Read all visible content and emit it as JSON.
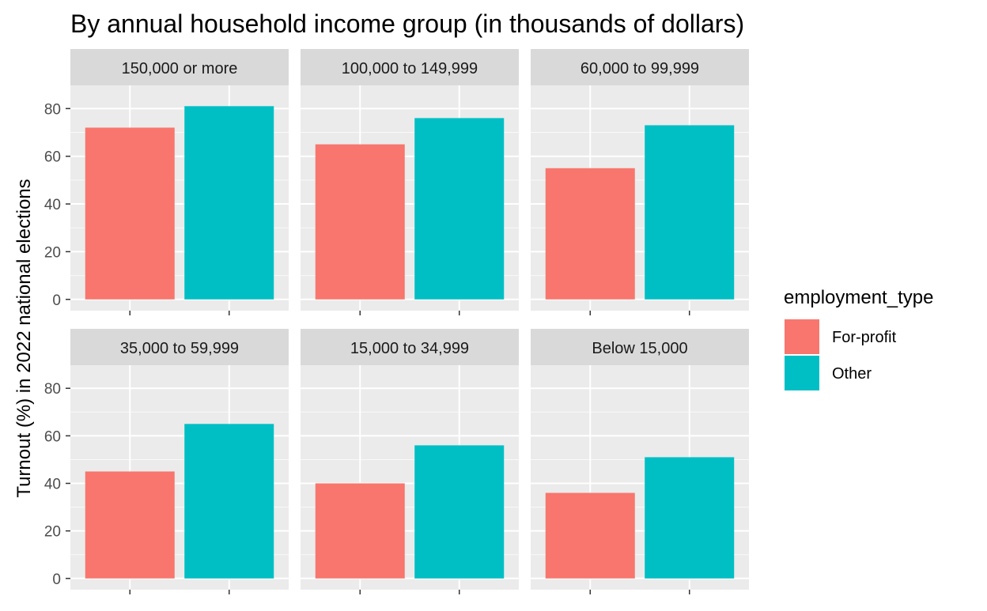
{
  "chart_data": {
    "type": "bar",
    "title": "By annual household income group (in thousands of dollars)",
    "ylabel": "Turnout (%) in 2022 national elections",
    "xlabel": "",
    "ylim": [
      0,
      85
    ],
    "yticks": [
      0,
      20,
      40,
      60,
      80
    ],
    "categories": [
      "For-profit",
      "Other"
    ],
    "legend": {
      "title": "employment_type",
      "position": "right",
      "entries": [
        {
          "label": "For-profit",
          "color": "#F8766D"
        },
        {
          "label": "Other",
          "color": "#00BFC4"
        }
      ]
    },
    "panels": [
      {
        "label": "150,000 or more",
        "values": [
          72,
          81
        ]
      },
      {
        "label": "100,000 to 149,999",
        "values": [
          65,
          76
        ]
      },
      {
        "label": "60,000 to 99,999",
        "values": [
          55,
          73
        ]
      },
      {
        "label": "35,000 to 59,999",
        "values": [
          45,
          65
        ]
      },
      {
        "label": "15,000 to 34,999",
        "values": [
          40,
          56
        ]
      },
      {
        "label": "Below 15,000",
        "values": [
          36,
          51
        ]
      }
    ],
    "grid": true
  },
  "colors": {
    "panel_background": "#EBEBEB",
    "strip_background": "#D9D9D9",
    "grid": "#FFFFFF"
  }
}
